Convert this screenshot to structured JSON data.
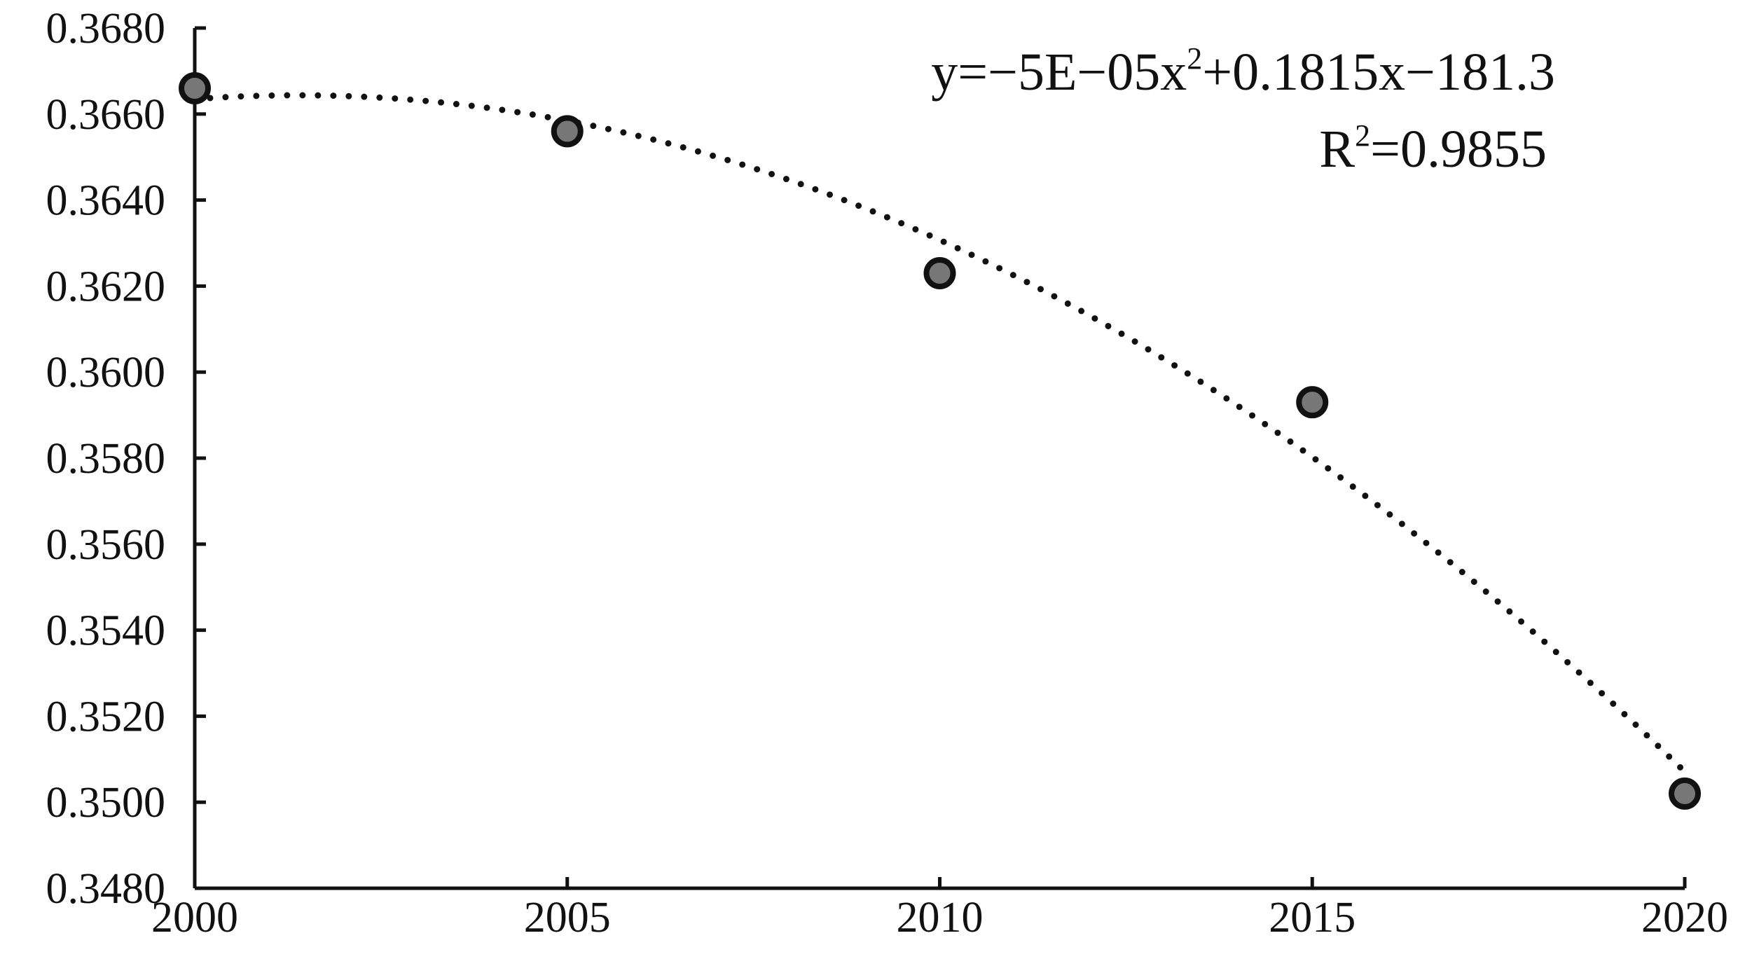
{
  "chart_data": {
    "type": "scatter",
    "x": [
      2000,
      2005,
      2010,
      2015,
      2020
    ],
    "y": [
      0.3666,
      0.3656,
      0.3623,
      0.3593,
      0.3502
    ],
    "x_ticks": [
      "2000",
      "2005",
      "2010",
      "2015",
      "2020"
    ],
    "y_ticks": [
      "0.3480",
      "0.3500",
      "0.3520",
      "0.3540",
      "0.3560",
      "0.3580",
      "0.3600",
      "0.3620",
      "0.3640",
      "0.3660",
      "0.3680"
    ],
    "xlim": [
      2000,
      2020
    ],
    "ylim": [
      0.348,
      0.368
    ],
    "grid": false,
    "legend": "none",
    "trendline": {
      "type": "polynomial",
      "order": 2,
      "style": "dotted",
      "equation_prefix": "y=−5E−05x",
      "equation_exp": "2",
      "equation_suffix": "+0.1815x−181.3",
      "r2_prefix": "R",
      "r2_exp": "2",
      "r2_suffix": "=0.9855"
    },
    "colors": {
      "point_fill": "#777777",
      "point_stroke": "#111111",
      "axis": "#111111"
    }
  }
}
